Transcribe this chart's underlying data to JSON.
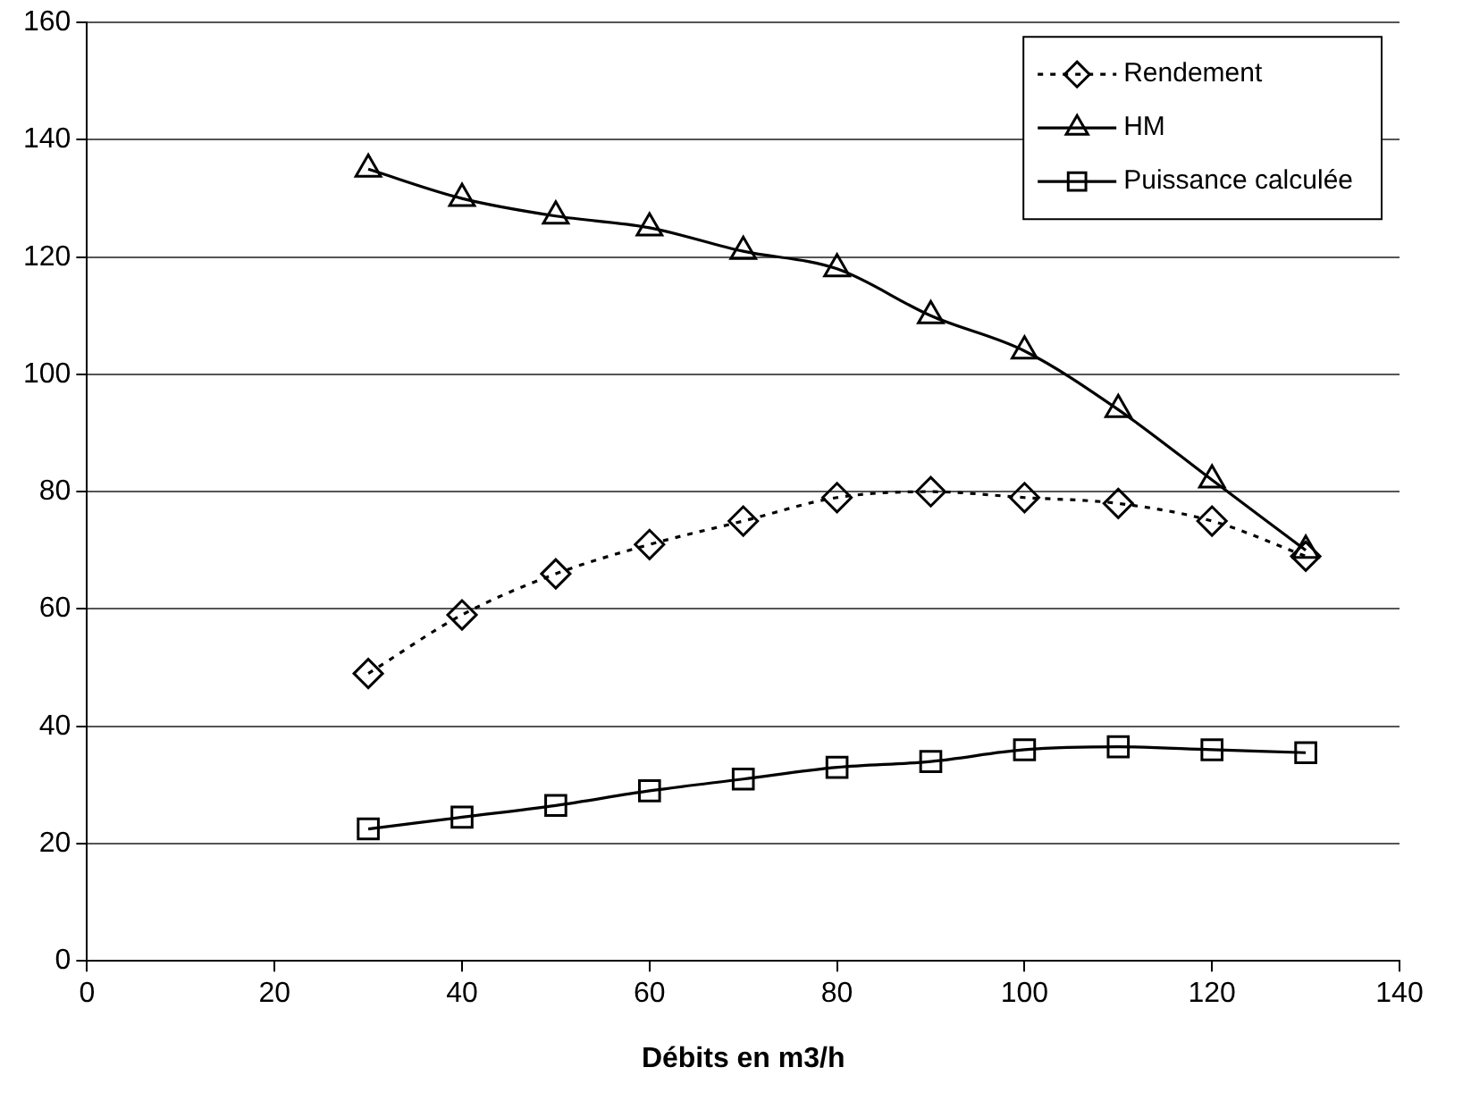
{
  "chart_data": {
    "type": "line",
    "xlabel": "Débits en m3/h",
    "x": [
      30,
      40,
      50,
      60,
      70,
      80,
      90,
      100,
      110,
      120,
      130
    ],
    "xlim": [
      0,
      140
    ],
    "xticks": [
      0,
      20,
      40,
      60,
      80,
      100,
      120,
      140
    ],
    "ylim": [
      0,
      160
    ],
    "yticks": [
      0,
      20,
      40,
      60,
      80,
      100,
      120,
      140,
      160
    ],
    "grid": "y",
    "legend": "top right",
    "series": [
      {
        "name": "Rendement",
        "color": "#000000",
        "marker": "diamond",
        "line_style": "dotted",
        "values": [
          49,
          59,
          66,
          71,
          75,
          79,
          80,
          79,
          78,
          75,
          69
        ]
      },
      {
        "name": "HM",
        "color": "#000000",
        "marker": "triangle",
        "line_style": "solid",
        "values": [
          135,
          130,
          127,
          125,
          121,
          118,
          110,
          104,
          94,
          82,
          70
        ]
      },
      {
        "name": "Puissance calculée",
        "color": "#000000",
        "marker": "square",
        "line_style": "solid",
        "values": [
          22.5,
          24.5,
          26.5,
          29,
          31,
          33,
          34,
          36,
          36.5,
          36,
          35.5
        ]
      }
    ]
  }
}
